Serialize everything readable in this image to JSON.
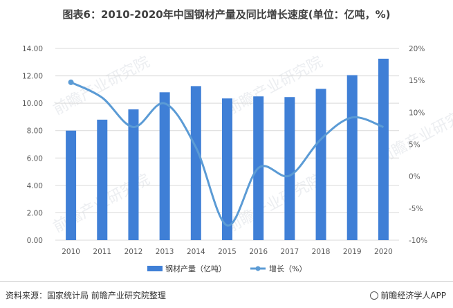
{
  "title": "图表6：2010-2020年中国钢材产量及同比增长速度(单位：亿吨，%)",
  "footer": {
    "source": "资料来源：国家统计局 前瞻产业研究院整理",
    "brand": "前瞻经济学人APP"
  },
  "watermark": "前瞻产业研究院",
  "colors": {
    "bar": "#3f7fd6",
    "line": "#5b9bd5",
    "grid": "#d9d9d9",
    "text": "#595959"
  },
  "chart_data": {
    "type": "bar",
    "title": "图表6：2010-2020年中国钢材产量及同比增长速度(单位：亿吨，%)",
    "categories": [
      "2010",
      "2011",
      "2012",
      "2013",
      "2014",
      "2015",
      "2016",
      "2017",
      "2018",
      "2019",
      "2020"
    ],
    "series": [
      {
        "name": "钢材产量（亿吨）",
        "type": "bar",
        "axis": "left",
        "values": [
          8.0,
          8.8,
          9.55,
          10.8,
          11.25,
          10.35,
          10.5,
          10.45,
          11.05,
          12.05,
          13.25
        ]
      },
      {
        "name": "增长（%）",
        "type": "line",
        "axis": "right",
        "smooth": true,
        "marker": "circle",
        "values": [
          14.7,
          12.3,
          7.7,
          11.4,
          4.5,
          -7.7,
          1.3,
          0.1,
          5.8,
          9.2,
          7.7
        ]
      }
    ],
    "y_left": {
      "min": 0,
      "max": 14,
      "step": 2,
      "tick_labels": [
        "0.00",
        "2.00",
        "4.00",
        "6.00",
        "8.00",
        "10.00",
        "12.00",
        "14.00"
      ]
    },
    "y_right": {
      "min": -10,
      "max": 20,
      "step": 5,
      "tick_labels": [
        "-10%",
        "-5%",
        "0%",
        "5%",
        "10%",
        "15%",
        "20%"
      ]
    },
    "grid": true,
    "legend": "bottom"
  }
}
